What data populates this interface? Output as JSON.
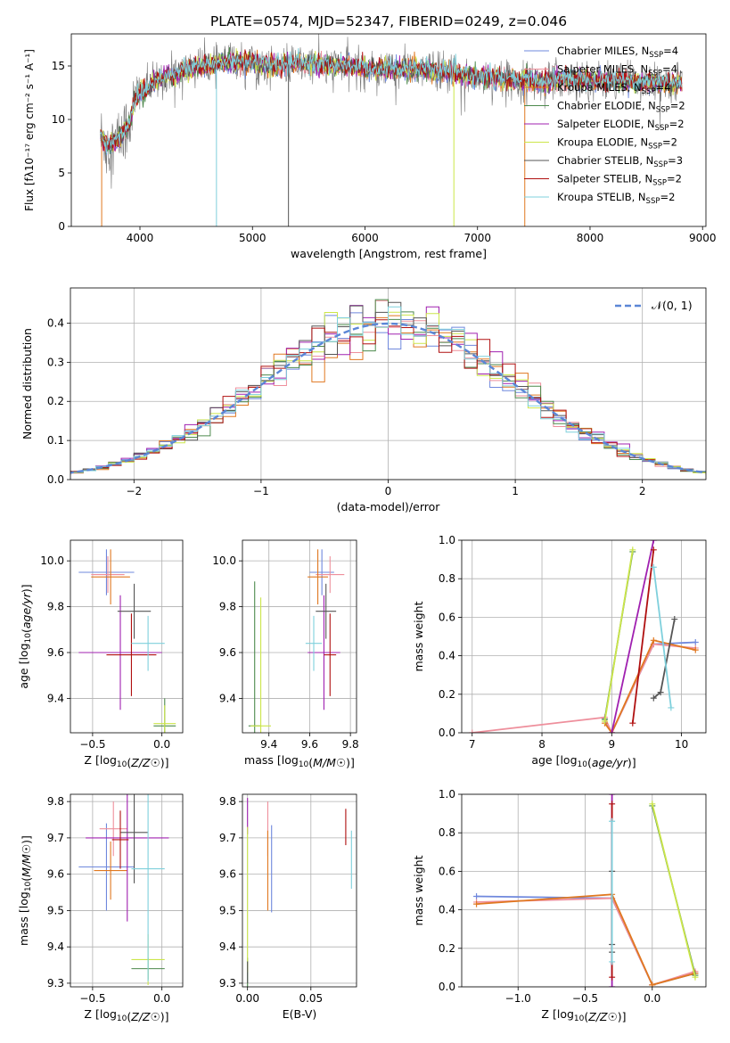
{
  "figure": {
    "title": "PLATE=0574, MJD=52347, FIBERID=0249, z=0.046"
  },
  "series_legend": [
    {
      "name": "Chabrier MILES, N",
      "sub": "SSP",
      "tail": "=4",
      "color": "#6f88dd"
    },
    {
      "name": "Salpeter MILES, N",
      "sub": "SSP",
      "tail": "=4",
      "color": "#ee8f9c"
    },
    {
      "name": "Kroupa MILES, N",
      "sub": "SSP",
      "tail": "=4",
      "color": "#e07820"
    },
    {
      "name": "Chabrier ELODIE, N",
      "sub": "SSP",
      "tail": "=2",
      "color": "#4d8a4d"
    },
    {
      "name": "Salpeter ELODIE, N",
      "sub": "SSP",
      "tail": "=2",
      "color": "#a020b0"
    },
    {
      "name": "Kroupa ELODIE, N",
      "sub": "SSP",
      "tail": "=2",
      "color": "#cce64a"
    },
    {
      "name": "Chabrier STELIB, N",
      "sub": "SSP",
      "tail": "=3",
      "color": "#555555"
    },
    {
      "name": "Salpeter STELIB, N",
      "sub": "SSP",
      "tail": "=2",
      "color": "#b01010"
    },
    {
      "name": "Kroupa STELIB, N",
      "sub": "SSP",
      "tail": "=2",
      "color": "#7fd0dc"
    }
  ],
  "chart_data": [
    {
      "id": "spectrum",
      "type": "line",
      "title": "PLATE=0574, MJD=52347, FIBERID=0249, z=0.046",
      "xlabel": "wavelength [Angstrom, rest frame]",
      "ylabel": "Flux [fλ10⁻¹⁷ erg cm⁻² s⁻¹ A⁻¹]",
      "xlim": [
        3390,
        9030
      ],
      "ylim": [
        0,
        18
      ],
      "xticks": [
        4000,
        5000,
        6000,
        7000,
        8000,
        9000
      ],
      "yticks": [
        0,
        5,
        10,
        15
      ],
      "grid": false,
      "legend": "right",
      "continuum": {
        "x": [
          3650,
          3700,
          3800,
          3900,
          3950,
          4000,
          4100,
          4200,
          4300,
          4400,
          4500,
          4600,
          4700,
          4800,
          4900,
          5000,
          5200,
          5400,
          5600,
          5800,
          6000,
          6200,
          6400,
          6600,
          6800,
          7000,
          7200,
          7400,
          7600,
          7800,
          8000,
          8200,
          8400,
          8600,
          8800
        ],
        "y": [
          8.5,
          7.5,
          8.0,
          9.5,
          11.5,
          12.5,
          13.2,
          14.0,
          14.2,
          14.6,
          14.9,
          15.0,
          15.2,
          15.3,
          15.4,
          15.3,
          15.0,
          15.2,
          15.1,
          15.0,
          14.8,
          14.7,
          14.7,
          14.6,
          14.3,
          14.0,
          13.8,
          13.6,
          13.5,
          13.9,
          13.7,
          13.6,
          13.5,
          13.4,
          13.4
        ]
      },
      "wavelength_range": [
        3650,
        8820
      ],
      "drops": [
        {
          "x": 4680,
          "series": "Kroupa STELIB, N"
        },
        {
          "x": 5320,
          "series": "Chabrier STELIB, N"
        },
        {
          "x": 6790,
          "series": "Kroupa ELODIE, N"
        },
        {
          "x": 7420,
          "series": "Kroupa MILES, N"
        },
        {
          "x": 3660,
          "series": "Kroupa MILES, N"
        }
      ]
    },
    {
      "id": "residuals",
      "type": "histogram",
      "xlabel": "(data-model)/error",
      "ylabel": "Normed distribution",
      "xlim": [
        -2.5,
        2.5
      ],
      "ylim": [
        0,
        0.49
      ],
      "xticks": [
        -2,
        -1,
        0,
        1,
        2
      ],
      "yticks": [
        0.0,
        0.1,
        0.2,
        0.3,
        0.4
      ],
      "grid": true,
      "legend_label": "𝒩(0, 1)",
      "legend": "top-right",
      "bin_width": 0.1
    },
    {
      "id": "age-vs-z",
      "type": "errorbar",
      "xlabel": "Z [log10(Z/Z☉)]",
      "ylabel": "age  [log10(age/yr)]",
      "xlim": [
        -0.66,
        0.15
      ],
      "ylim": [
        9.25,
        10.09
      ],
      "xticks": [
        -0.5,
        0.0
      ],
      "xtick_labels": [
        "−0.5",
        "0.0"
      ],
      "yticks": [
        9.4,
        9.6,
        9.8,
        10.0
      ],
      "grid": true,
      "points": [
        {
          "series": 0,
          "x": -0.4,
          "y": 9.95,
          "xerr": 0.2,
          "yerr": 0.1
        },
        {
          "series": 1,
          "x": -0.39,
          "y": 9.94,
          "xerr": 0.12,
          "yerr": 0.08
        },
        {
          "series": 2,
          "x": -0.37,
          "y": 9.93,
          "xerr": 0.14,
          "yerr": 0.12
        },
        {
          "series": 3,
          "x": 0.02,
          "y": 9.28,
          "xerr": 0.08,
          "yerr": 0.12
        },
        {
          "series": 4,
          "x": -0.3,
          "y": 9.6,
          "xerr": 0.3,
          "yerr": 0.25
        },
        {
          "series": 5,
          "x": 0.02,
          "y": 9.29,
          "xerr": 0.08,
          "yerr": 0.08
        },
        {
          "series": 6,
          "x": -0.2,
          "y": 9.78,
          "xerr": 0.12,
          "yerr": 0.12
        },
        {
          "series": 7,
          "x": -0.22,
          "y": 9.59,
          "xerr": 0.18,
          "yerr": 0.18
        },
        {
          "series": 8,
          "x": -0.1,
          "y": 9.64,
          "xerr": 0.12,
          "yerr": 0.12
        }
      ]
    },
    {
      "id": "age-vs-mass",
      "type": "errorbar",
      "xlabel": "mass [log10(M/M☉)]",
      "ylabel": "",
      "xlim": [
        9.27,
        9.83
      ],
      "ylim": [
        9.25,
        10.09
      ],
      "xticks": [
        9.4,
        9.6,
        9.8
      ],
      "yticks": [
        9.4,
        9.6,
        9.8,
        10.0
      ],
      "grid": true,
      "points": [
        {
          "series": 0,
          "x": 9.66,
          "y": 9.95,
          "xerr": 0.06,
          "yerr": 0.1
        },
        {
          "series": 1,
          "x": 9.7,
          "y": 9.94,
          "xerr": 0.07,
          "yerr": 0.08
        },
        {
          "series": 2,
          "x": 9.64,
          "y": 9.93,
          "xerr": 0.05,
          "yerr": 0.12
        },
        {
          "series": 3,
          "x": 9.33,
          "y": 9.28,
          "xerr": 0.03,
          "yerr": 0.63
        },
        {
          "series": 4,
          "x": 9.67,
          "y": 9.6,
          "xerr": 0.08,
          "yerr": 0.25
        },
        {
          "series": 5,
          "x": 9.36,
          "y": 9.28,
          "xerr": 0.05,
          "yerr": 0.56
        },
        {
          "series": 6,
          "x": 9.68,
          "y": 9.78,
          "xerr": 0.05,
          "yerr": 0.12
        },
        {
          "series": 7,
          "x": 9.7,
          "y": 9.59,
          "xerr": 0.03,
          "yerr": 0.18
        },
        {
          "series": 8,
          "x": 9.62,
          "y": 9.64,
          "xerr": 0.04,
          "yerr": 0.12
        }
      ]
    },
    {
      "id": "massweight-vs-age",
      "type": "line",
      "xlabel": "age  [log10(age/yr)]",
      "ylabel": "mass weight",
      "xlim": [
        6.85,
        10.35
      ],
      "ylim": [
        0,
        1
      ],
      "xticks": [
        7,
        8,
        9,
        10
      ],
      "yticks": [
        0.0,
        0.2,
        0.4,
        0.6,
        0.8,
        1.0
      ],
      "grid": true,
      "series": [
        {
          "series": 0,
          "x": [
            8.9,
            9.0,
            9.6,
            10.2
          ],
          "y": [
            0.07,
            0.0,
            0.46,
            0.47
          ]
        },
        {
          "series": 1,
          "x": [
            7.0,
            8.9,
            9.0,
            9.6,
            10.2
          ],
          "y": [
            0.0,
            0.08,
            0.0,
            0.46,
            0.44
          ]
        },
        {
          "series": 2,
          "x": [
            8.9,
            9.0,
            9.6,
            10.2
          ],
          "y": [
            0.05,
            0.0,
            0.48,
            0.43
          ]
        },
        {
          "series": 3,
          "x": [
            8.9,
            9.3
          ],
          "y": [
            0.07,
            0.94
          ]
        },
        {
          "series": 4,
          "x": [
            9.0,
            9.6
          ],
          "y": [
            0.0,
            1.0
          ]
        },
        {
          "series": 5,
          "x": [
            8.9,
            9.3
          ],
          "y": [
            0.06,
            0.95
          ]
        },
        {
          "series": 6,
          "x": [
            9.6,
            9.7,
            9.9
          ],
          "y": [
            0.18,
            0.21,
            0.59
          ]
        },
        {
          "series": 7,
          "x": [
            9.3,
            9.6
          ],
          "y": [
            0.05,
            0.95
          ]
        },
        {
          "series": 8,
          "x": [
            9.6,
            9.85
          ],
          "y": [
            0.86,
            0.13
          ]
        }
      ]
    },
    {
      "id": "mass-vs-z",
      "type": "errorbar",
      "xlabel": "Z [log10(Z/Z☉)]",
      "ylabel": "mass [log10(M/M☉)]",
      "xlim": [
        -0.66,
        0.15
      ],
      "ylim": [
        9.29,
        9.82
      ],
      "xticks": [
        -0.5,
        0.0
      ],
      "xtick_labels": [
        "−0.5",
        "0.0"
      ],
      "yticks": [
        9.3,
        9.4,
        9.5,
        9.6,
        9.7,
        9.8
      ],
      "grid": true,
      "points": [
        {
          "series": 0,
          "x": -0.4,
          "y": 9.62,
          "xerr": 0.2,
          "yerr": 0.12
        },
        {
          "series": 1,
          "x": -0.35,
          "y": 9.725,
          "xerr": 0.1,
          "yerr": 0.075
        },
        {
          "series": 2,
          "x": -0.37,
          "y": 9.61,
          "xerr": 0.12,
          "yerr": 0.08
        },
        {
          "series": 3,
          "x": -0.1,
          "y": 9.34,
          "xerr": 0.12,
          "yerr": 0.03
        },
        {
          "series": 4,
          "x": -0.25,
          "y": 9.7,
          "xerr": 0.3,
          "yerr": 0.23
        },
        {
          "series": 5,
          "x": -0.1,
          "y": 9.365,
          "xerr": 0.12,
          "yerr": 0.07
        },
        {
          "series": 6,
          "x": -0.2,
          "y": 9.715,
          "xerr": 0.1,
          "yerr": 0.14
        },
        {
          "series": 7,
          "x": -0.3,
          "y": 9.695,
          "xerr": 0.06,
          "yerr": 0.08
        },
        {
          "series": 8,
          "x": -0.1,
          "y": 9.615,
          "xerr": 0.12,
          "yerr": 0.31
        }
      ]
    },
    {
      "id": "mass-vs-ebv",
      "type": "errorbar",
      "xlabel": "E(B-V)",
      "ylabel": "",
      "xlim": [
        -0.004,
        0.086
      ],
      "ylim": [
        9.29,
        9.82
      ],
      "xticks": [
        0.0,
        0.05
      ],
      "xtick_labels": [
        "0.00",
        "0.05"
      ],
      "yticks": [
        9.3,
        9.4,
        9.5,
        9.6,
        9.7,
        9.8
      ],
      "grid": true,
      "points": [
        {
          "series": 0,
          "x": 0.019,
          "y": 9.615,
          "xerr": 0,
          "yerr": 0.12
        },
        {
          "series": 1,
          "x": 0.016,
          "y": 9.725,
          "xerr": 0,
          "yerr": 0.075
        },
        {
          "series": 2,
          "x": 0.016,
          "y": 9.61,
          "xerr": 0,
          "yerr": 0.11
        },
        {
          "series": 3,
          "x": 0.0,
          "y": 9.33,
          "xerr": 0,
          "yerr": 0.04
        },
        {
          "series": 4,
          "x": 0.0,
          "y": 9.76,
          "xerr": 0,
          "yerr": 0.05
        },
        {
          "series": 5,
          "x": 0.0,
          "y": 9.53,
          "xerr": 0,
          "yerr": 0.2
        },
        {
          "series": 6,
          "x": 0.0,
          "y": 9.33,
          "xerr": 0,
          "yerr": 0.03
        },
        {
          "series": 7,
          "x": 0.0775,
          "y": 9.73,
          "xerr": 0,
          "yerr": 0.05
        },
        {
          "series": 8,
          "x": 0.082,
          "y": 9.64,
          "xerr": 0,
          "yerr": 0.08
        }
      ]
    },
    {
      "id": "massweight-vs-z",
      "type": "line",
      "xlabel": "Z [log10(Z/Z☉)]",
      "ylabel": "mass weight",
      "xlim": [
        -1.42,
        0.4
      ],
      "ylim": [
        0,
        1
      ],
      "xticks": [
        -1.0,
        -0.5,
        0.0
      ],
      "xtick_labels": [
        "−1.0",
        "−0.5",
        "0.0"
      ],
      "yticks": [
        0.0,
        0.2,
        0.4,
        0.6,
        0.8,
        1.0
      ],
      "grid": true,
      "series": [
        {
          "series": 0,
          "x": [
            -1.31,
            -0.3,
            0.0,
            0.32
          ],
          "y": [
            0.47,
            0.46,
            0.01,
            0.07
          ]
        },
        {
          "series": 1,
          "x": [
            -1.31,
            -0.3,
            0.0,
            0.32
          ],
          "y": [
            0.44,
            0.46,
            0.01,
            0.08
          ]
        },
        {
          "series": 2,
          "x": [
            -1.31,
            -0.3,
            0.0,
            0.32
          ],
          "y": [
            0.43,
            0.48,
            0.01,
            0.07
          ]
        },
        {
          "series": 3,
          "x": [
            0.0,
            0.32
          ],
          "y": [
            0.94,
            0.06
          ]
        },
        {
          "series": 4,
          "x": [
            -0.3,
            -0.3
          ],
          "y": [
            0.0,
            1.0
          ]
        },
        {
          "series": 5,
          "x": [
            0.0,
            0.32
          ],
          "y": [
            0.95,
            0.05
          ]
        },
        {
          "series": 6,
          "x": [
            -0.3,
            -0.3,
            -0.3
          ],
          "y": [
            0.18,
            0.22,
            0.6
          ]
        },
        {
          "series": 7,
          "x": [
            -0.3,
            -0.3
          ],
          "y": [
            0.05,
            0.95
          ]
        },
        {
          "series": 8,
          "x": [
            -0.3,
            -0.3
          ],
          "y": [
            0.13,
            0.86
          ]
        }
      ]
    }
  ]
}
